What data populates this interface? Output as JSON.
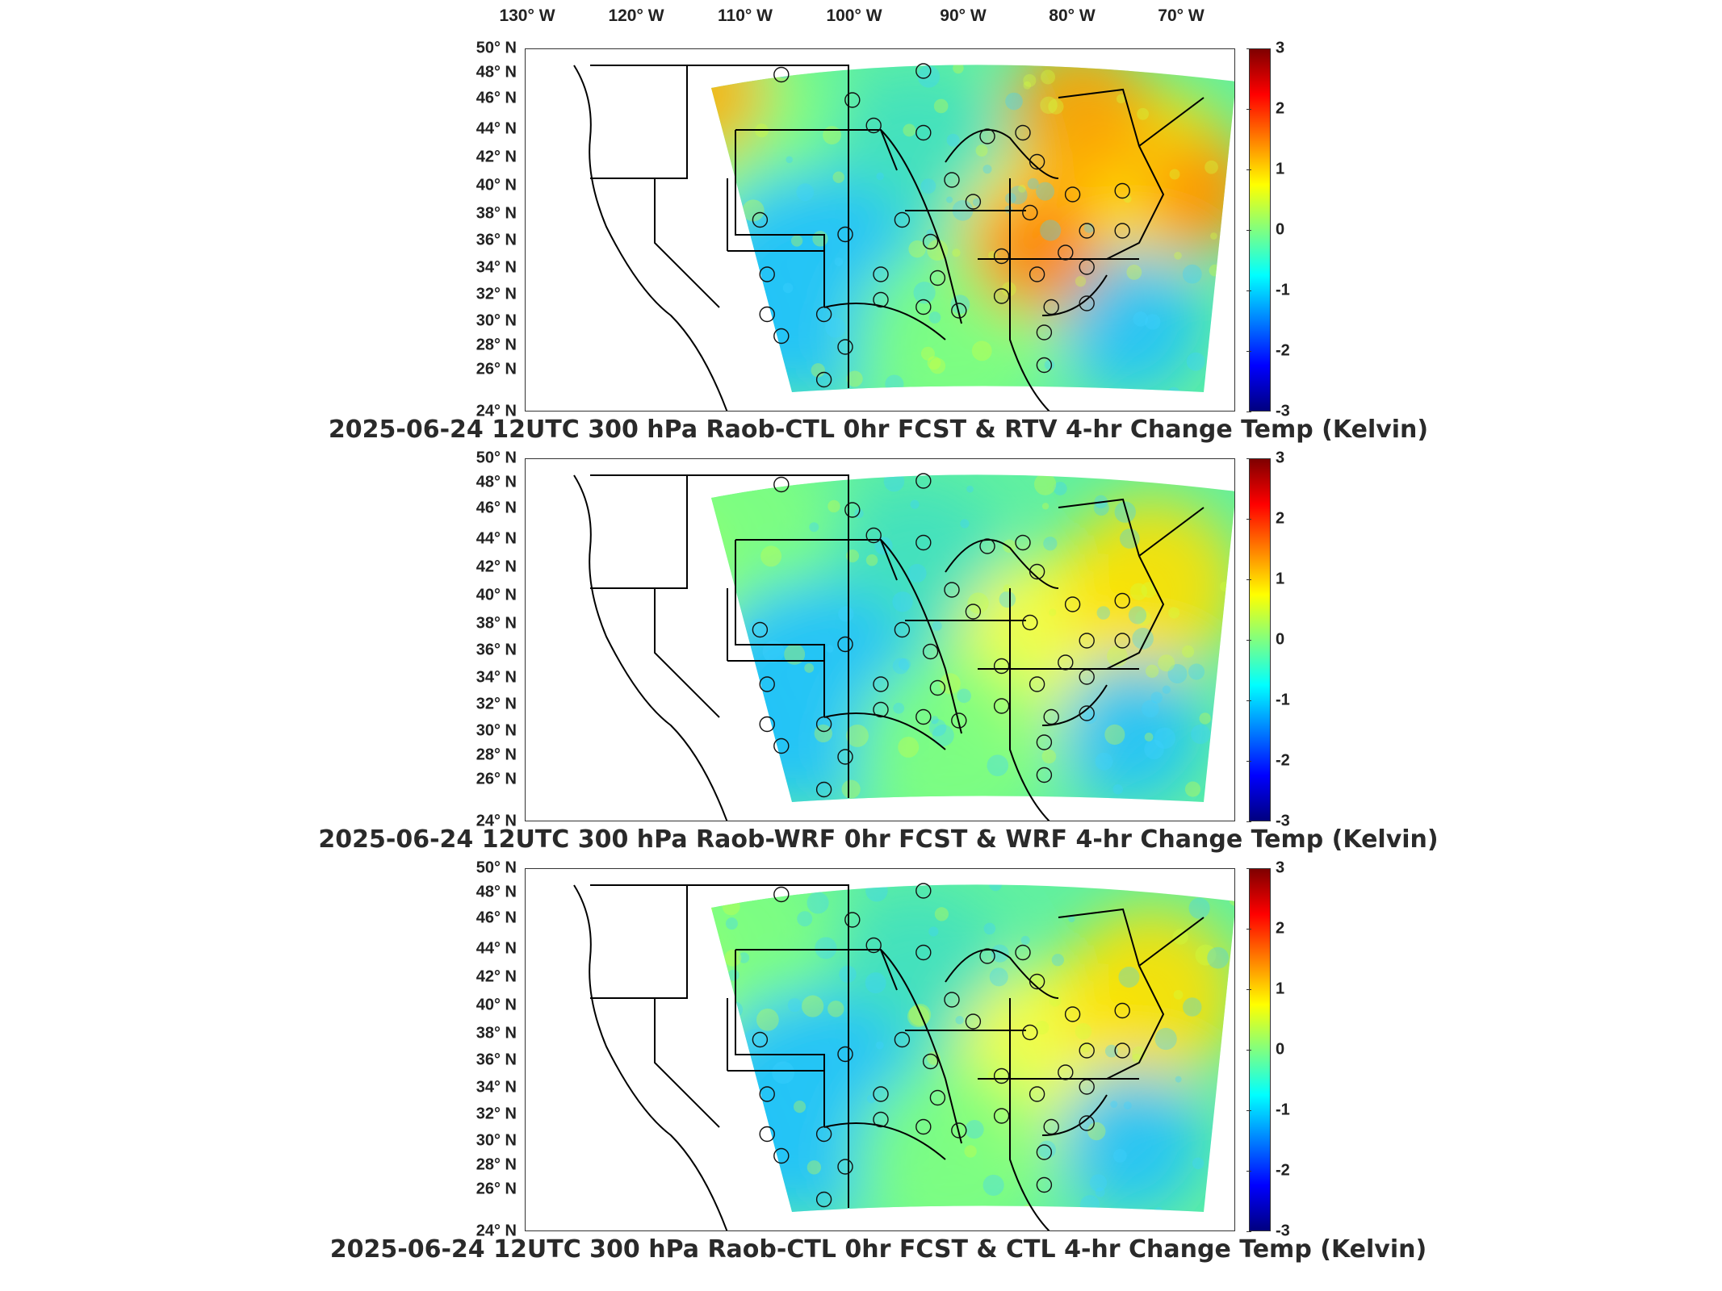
{
  "longitude_labels": [
    "130° W",
    "120° W",
    "110° W",
    "100° W",
    "90° W",
    "80° W",
    "70° W"
  ],
  "latitude_labels": [
    "50° N",
    "48° N",
    "46° N",
    "44° N",
    "42° N",
    "40° N",
    "38° N",
    "36° N",
    "34° N",
    "32° N",
    "30° N",
    "28° N",
    "26° N",
    "24° N"
  ],
  "colorbar": {
    "ticks": [
      "3",
      "2",
      "1",
      "0",
      "-1",
      "-2",
      "-3"
    ],
    "range": [
      -3,
      3
    ],
    "colormap": "jet",
    "colors": [
      "#00007f",
      "#0000ff",
      "#0080ff",
      "#00ffff",
      "#80ff80",
      "#ffff00",
      "#ff8000",
      "#ff0000",
      "#7f0000"
    ]
  },
  "panels": [
    {
      "title": "2025-06-24 12UTC 300 hPa Raob-CTL 0hr FCST & RTV 4-hr Change Temp (Kelvin)",
      "warm_bias": true
    },
    {
      "title": "2025-06-24 12UTC 300 hPa Raob-WRF 0hr FCST & WRF 4-hr Change Temp (Kelvin)",
      "warm_bias": false
    },
    {
      "title": "2025-06-24 12UTC 300 hPa Raob-CTL 0hr FCST & CTL 4-hr Change Temp (Kelvin)",
      "warm_bias": false
    }
  ],
  "colors": {
    "map_lines": "#000000",
    "frame": "#333333",
    "background": "#ffffff"
  }
}
